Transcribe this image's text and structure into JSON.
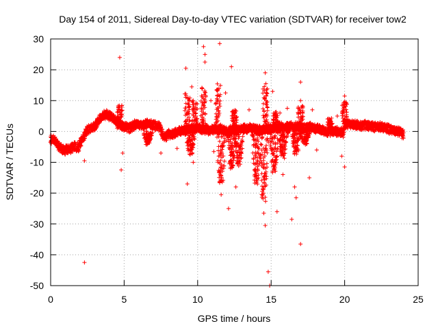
{
  "chart_data": {
    "type": "scatter",
    "title": "Day 154 of 2011, Sidereal Day-to-day VTEC variation (SDTVAR) for receiver tow2",
    "xlabel": "GPS time / hours",
    "ylabel": "SDTVAR / TECUs",
    "xlim": [
      0,
      25
    ],
    "ylim": [
      -50,
      30
    ],
    "xticks": [
      0,
      5,
      10,
      15,
      20,
      25
    ],
    "yticks": [
      -50,
      -40,
      -30,
      -20,
      -10,
      0,
      10,
      20,
      30
    ],
    "grid": true,
    "marker": "+",
    "color": "#ff0000",
    "series": [
      {
        "name": "SDTVAR",
        "baseline": [
          [
            0.0,
            -2.5
          ],
          [
            0.3,
            -3.0
          ],
          [
            0.5,
            -4.5
          ],
          [
            0.8,
            -6.0
          ],
          [
            1.2,
            -6.0
          ],
          [
            1.6,
            -5.0
          ],
          [
            1.9,
            -5.0
          ],
          [
            2.2,
            -2.0
          ],
          [
            2.5,
            0.5
          ],
          [
            2.8,
            1.0
          ],
          [
            3.0,
            1.5
          ],
          [
            3.2,
            3.0
          ],
          [
            3.5,
            5.0
          ],
          [
            3.8,
            5.5
          ],
          [
            4.0,
            5.0
          ],
          [
            4.3,
            4.0
          ],
          [
            4.6,
            3.5
          ],
          [
            4.8,
            2.0
          ],
          [
            5.0,
            1.5
          ],
          [
            5.4,
            1.0
          ],
          [
            5.8,
            2.5
          ],
          [
            6.2,
            2.0
          ],
          [
            6.6,
            2.5
          ],
          [
            7.0,
            2.0
          ],
          [
            7.4,
            1.5
          ],
          [
            7.7,
            -2.0
          ],
          [
            8.0,
            -1.0
          ],
          [
            8.4,
            -0.5
          ],
          [
            8.8,
            0.0
          ],
          [
            9.2,
            0.5
          ],
          [
            9.6,
            1.0
          ],
          [
            10.0,
            1.0
          ],
          [
            10.4,
            0.5
          ],
          [
            10.8,
            0.5
          ],
          [
            11.2,
            1.0
          ],
          [
            11.6,
            0.5
          ],
          [
            12.0,
            0.0
          ],
          [
            12.4,
            0.5
          ],
          [
            12.8,
            0.5
          ],
          [
            13.2,
            1.0
          ],
          [
            13.6,
            1.0
          ],
          [
            14.0,
            0.5
          ],
          [
            14.4,
            0.5
          ],
          [
            14.8,
            1.0
          ],
          [
            15.2,
            1.0
          ],
          [
            15.6,
            1.5
          ],
          [
            16.0,
            1.0
          ],
          [
            16.4,
            1.5
          ],
          [
            16.8,
            1.5
          ],
          [
            17.2,
            1.0
          ],
          [
            17.6,
            1.5
          ],
          [
            18.0,
            1.0
          ],
          [
            18.4,
            0.5
          ],
          [
            18.8,
            0.0
          ],
          [
            19.2,
            0.0
          ],
          [
            19.6,
            0.0
          ],
          [
            19.9,
            -0.5
          ],
          [
            20.0,
            2.5
          ],
          [
            20.4,
            2.5
          ],
          [
            20.8,
            2.0
          ],
          [
            21.2,
            2.0
          ],
          [
            21.6,
            2.0
          ],
          [
            22.0,
            1.5
          ],
          [
            22.4,
            1.5
          ],
          [
            22.8,
            1.0
          ],
          [
            23.2,
            0.5
          ],
          [
            23.6,
            0.0
          ],
          [
            24.0,
            -1.0
          ]
        ],
        "dips": [
          [
            6.6,
            0.0,
            -4.0
          ],
          [
            9.5,
            0.5,
            -7.0
          ],
          [
            11.6,
            0.5,
            -17.0
          ],
          [
            12.3,
            0.0,
            -12.0
          ],
          [
            12.8,
            0.0,
            -11.0
          ],
          [
            14.0,
            0.0,
            -17.0
          ],
          [
            14.5,
            0.0,
            -22.0
          ],
          [
            15.2,
            0.0,
            -13.0
          ],
          [
            15.8,
            0.0,
            -8.0
          ],
          [
            16.7,
            0.5,
            -7.0
          ],
          [
            17.3,
            0.5,
            -4.0
          ]
        ],
        "spikes": [
          [
            4.7,
            1.0,
            9.0
          ],
          [
            9.3,
            0.0,
            12.0
          ],
          [
            9.8,
            0.5,
            10.0
          ],
          [
            10.4,
            1.0,
            14.0
          ],
          [
            11.4,
            0.5,
            15.0
          ],
          [
            12.5,
            0.5,
            7.0
          ],
          [
            14.6,
            0.5,
            15.0
          ],
          [
            15.3,
            1.0,
            6.0
          ],
          [
            16.2,
            1.0,
            3.0
          ],
          [
            17.0,
            1.0,
            8.0
          ],
          [
            19.0,
            0.5,
            4.0
          ],
          [
            20.0,
            2.0,
            10.0
          ]
        ],
        "outliers": [
          [
            2.3,
            -42.5
          ],
          [
            4.7,
            24.0
          ],
          [
            4.8,
            -12.5
          ],
          [
            2.3,
            -9.5
          ],
          [
            9.2,
            20.5
          ],
          [
            9.3,
            -17.0
          ],
          [
            10.4,
            27.5
          ],
          [
            10.5,
            22.5
          ],
          [
            10.5,
            25.0
          ],
          [
            11.5,
            28.5
          ],
          [
            12.3,
            21.0
          ],
          [
            12.1,
            -25.0
          ],
          [
            11.6,
            -20.5
          ],
          [
            14.6,
            19.0
          ],
          [
            14.8,
            -45.5
          ],
          [
            14.9,
            -50.0
          ],
          [
            14.5,
            -26.5
          ],
          [
            14.6,
            -30.5
          ],
          [
            15.1,
            13.0
          ],
          [
            15.4,
            -26.0
          ],
          [
            16.4,
            -28.5
          ],
          [
            16.6,
            -18.0
          ],
          [
            17.0,
            16.0
          ],
          [
            17.0,
            -36.5
          ],
          [
            17.0,
            10.0
          ],
          [
            17.6,
            -15.0
          ],
          [
            16.7,
            -21.5
          ],
          [
            15.8,
            -14.0
          ],
          [
            20.0,
            11.5
          ],
          [
            20.0,
            -11.5
          ],
          [
            19.5,
            5.0
          ],
          [
            18.5,
            0.5
          ],
          [
            15.6,
            6.0
          ],
          [
            13.5,
            7.0
          ],
          [
            16.1,
            7.5
          ],
          [
            17.8,
            7.0
          ],
          [
            9.6,
            14.5
          ],
          [
            10.9,
            10.0
          ],
          [
            11.9,
            12.5
          ],
          [
            8.6,
            -5.5
          ],
          [
            7.5,
            -7.0
          ],
          [
            4.9,
            -7.0
          ],
          [
            13.9,
            -14.0
          ],
          [
            12.6,
            -18.0
          ],
          [
            9.7,
            -10.0
          ],
          [
            11.1,
            -6.5
          ],
          [
            18.1,
            -6.0
          ],
          [
            19.8,
            -8.0
          ]
        ]
      }
    ]
  }
}
